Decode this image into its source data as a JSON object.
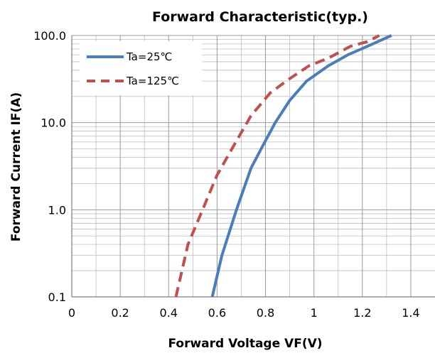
{
  "colors": {
    "series1": "#4a7ebb",
    "series2": "#c0504d",
    "grid": "#999999",
    "minor_grid": "#bdbdbd"
  },
  "chart_data": {
    "type": "line",
    "title": "Forward Characteristic(typ.)",
    "xlabel": "Forward Voltage VF(V)",
    "ylabel": "Forward Current IF(A)",
    "xlim": [
      0,
      1.5
    ],
    "ylim": [
      0.1,
      100
    ],
    "yscale": "log",
    "grid": true,
    "legend_position": "top-left",
    "xticks": [
      "0",
      "0.2",
      "0.4",
      "0.6",
      "0.8",
      "1",
      "1.2",
      "1.4"
    ],
    "yticks": [
      "0.1",
      "1.0",
      "10.0",
      "100.0"
    ],
    "series": [
      {
        "name": "Ta=25℃",
        "style": "solid",
        "color": "#4a7ebb",
        "x": [
          0.58,
          0.62,
          0.68,
          0.74,
          0.79,
          0.84,
          0.9,
          0.97,
          1.06,
          1.14,
          1.22,
          1.32
        ],
        "y": [
          0.1,
          0.3,
          1.0,
          3.0,
          5.5,
          10,
          18,
          30,
          45,
          60,
          75,
          100
        ]
      },
      {
        "name": "Ta=125℃",
        "style": "dashed",
        "color": "#c0504d",
        "x": [
          0.43,
          0.48,
          0.54,
          0.6,
          0.67,
          0.74,
          0.82,
          0.9,
          0.98,
          1.06,
          1.15,
          1.22,
          1.27
        ],
        "y": [
          0.1,
          0.4,
          1.0,
          2.5,
          5.5,
          12,
          22,
          32,
          45,
          55,
          75,
          85,
          100
        ]
      }
    ]
  }
}
